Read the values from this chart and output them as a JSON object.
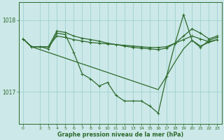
{
  "bg_color": "#cce8e8",
  "line_color": "#2d6b2d",
  "grid_color": "#99cccc",
  "xlabel": "Graphe pression niveau de la mer (hPa)",
  "ylim": [
    1016.55,
    1018.25
  ],
  "xlim": [
    -0.5,
    23.5
  ],
  "xticks": [
    0,
    2,
    3,
    4,
    5,
    6,
    7,
    8,
    9,
    10,
    11,
    12,
    13,
    14,
    15,
    16,
    17,
    18,
    19,
    20,
    21,
    22,
    23
  ],
  "yticks": [
    1017.0,
    1018.0
  ],
  "line1_x": [
    0,
    1,
    2,
    3,
    4,
    5,
    6,
    7,
    8,
    9,
    10,
    11,
    12,
    13,
    14,
    15,
    16,
    17,
    18,
    19,
    20,
    21,
    22,
    23
  ],
  "line1_y": [
    1017.74,
    1017.63,
    1017.63,
    1017.63,
    1017.78,
    1017.76,
    1017.73,
    1017.71,
    1017.69,
    1017.68,
    1017.67,
    1017.66,
    1017.65,
    1017.64,
    1017.63,
    1017.62,
    1017.62,
    1017.63,
    1017.68,
    1017.73,
    1017.78,
    1017.74,
    1017.7,
    1017.73
  ],
  "line2_x": [
    0,
    1,
    2,
    3,
    4,
    5,
    6,
    7,
    8,
    9,
    10,
    11,
    12,
    13,
    14,
    15,
    16,
    17,
    18,
    19,
    20,
    21,
    22,
    23
  ],
  "line2_y": [
    1017.74,
    1017.63,
    1017.63,
    1017.63,
    1017.85,
    1017.83,
    1017.78,
    1017.75,
    1017.73,
    1017.71,
    1017.68,
    1017.66,
    1017.64,
    1017.62,
    1017.61,
    1017.6,
    1017.59,
    1017.61,
    1017.68,
    1017.78,
    1017.88,
    1017.82,
    1017.74,
    1017.78
  ],
  "line3_x": [
    0,
    1,
    2,
    3,
    4,
    5,
    6,
    7,
    8,
    9,
    10,
    11,
    12,
    13,
    14,
    15,
    16,
    17,
    18,
    19,
    20,
    21,
    22,
    23
  ],
  "line3_y": [
    1017.74,
    1017.63,
    1017.63,
    1017.6,
    1017.82,
    1017.8,
    1017.55,
    1017.25,
    1017.18,
    1017.08,
    1017.13,
    1016.95,
    1016.87,
    1016.87,
    1016.87,
    1016.8,
    1016.7,
    1017.22,
    1017.68,
    1018.08,
    1017.72,
    1017.62,
    1017.72,
    1017.76
  ],
  "line4_x": [
    0,
    1,
    2,
    3,
    4,
    5,
    6,
    7,
    8,
    9,
    10,
    11,
    12,
    13,
    14,
    15,
    16,
    17,
    18,
    19,
    20,
    21,
    22,
    23
  ],
  "line4_y": [
    1017.74,
    1017.63,
    1017.59,
    1017.55,
    1017.51,
    1017.47,
    1017.43,
    1017.39,
    1017.35,
    1017.31,
    1017.27,
    1017.23,
    1017.19,
    1017.15,
    1017.11,
    1017.07,
    1017.03,
    1017.22,
    1017.42,
    1017.6,
    1017.72,
    1017.64,
    1017.69,
    1017.73
  ]
}
